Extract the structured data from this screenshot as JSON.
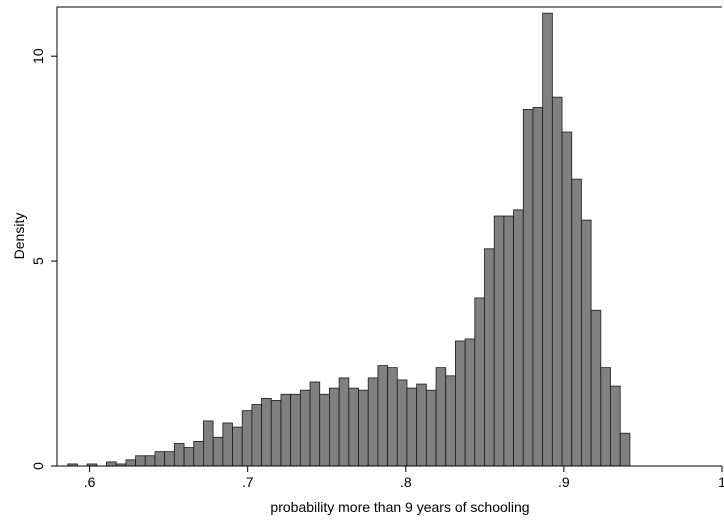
{
  "chart_data": {
    "type": "bar",
    "title": "",
    "xlabel": "probability more than 9 years of schooling",
    "ylabel": "Density",
    "xlim": [
      0.5794,
      1.0
    ],
    "ylim": [
      0,
      11.2
    ],
    "grid": false,
    "bar_fill": "#808080",
    "bar_stroke": "#1a1a1a",
    "axis_color": "#000000",
    "bin_width": 0.00613,
    "bins_start": 0.5862,
    "x_ticks": [
      {
        "value": 0.6,
        "label": ".6"
      },
      {
        "value": 0.7,
        "label": ".7"
      },
      {
        "value": 0.8,
        "label": ".8"
      },
      {
        "value": 0.9,
        "label": ".9"
      },
      {
        "value": 1.0,
        "label": "1"
      }
    ],
    "y_ticks": [
      {
        "value": 0,
        "label": "0"
      },
      {
        "value": 5,
        "label": "5"
      },
      {
        "value": 10,
        "label": "10"
      }
    ],
    "values": [
      0.05,
      0.0,
      0.05,
      0.0,
      0.1,
      0.05,
      0.15,
      0.25,
      0.25,
      0.35,
      0.35,
      0.55,
      0.45,
      0.6,
      1.1,
      0.7,
      1.05,
      0.95,
      1.35,
      1.5,
      1.65,
      1.6,
      1.75,
      1.75,
      1.85,
      2.05,
      1.75,
      1.9,
      2.15,
      1.9,
      1.85,
      2.15,
      2.45,
      2.4,
      2.1,
      1.9,
      2.0,
      1.85,
      2.4,
      2.2,
      3.05,
      3.1,
      4.1,
      5.3,
      6.1,
      6.1,
      6.25,
      8.7,
      8.75,
      11.05,
      9.0,
      8.15,
      7.0,
      6.0,
      3.8,
      2.4,
      1.95,
      0.8
    ]
  }
}
